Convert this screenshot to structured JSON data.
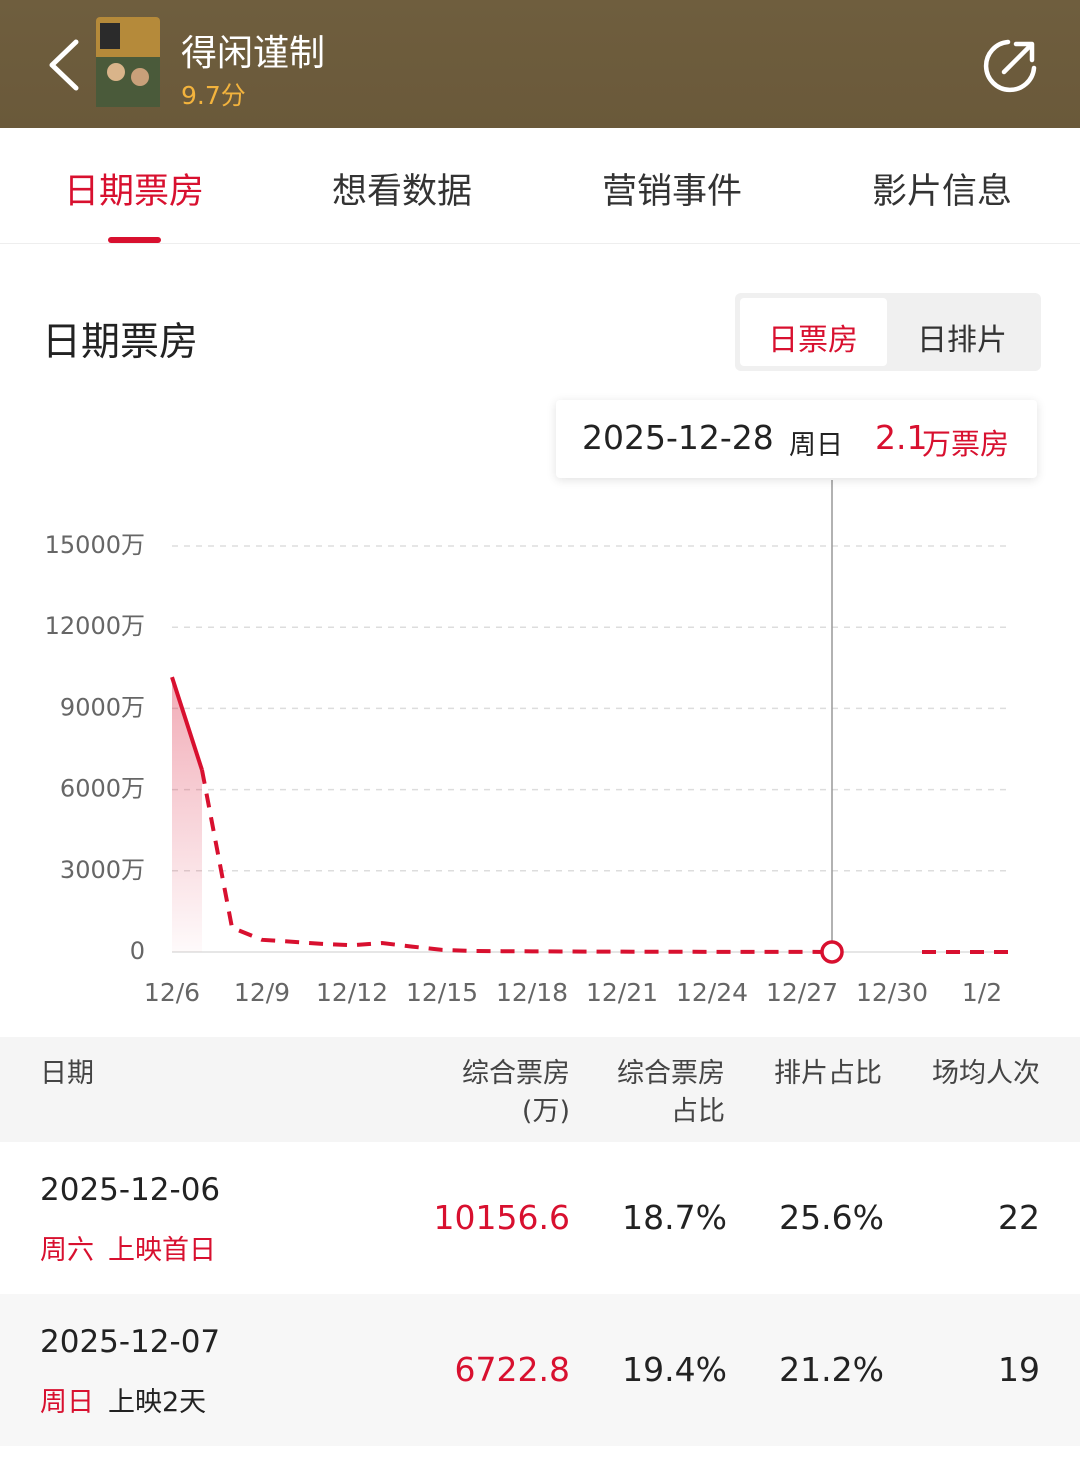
{
  "header": {
    "title": "得闲谨制",
    "rating": "9.7分"
  },
  "tabs": [
    "日期票房",
    "想看数据",
    "营销事件",
    "影片信息"
  ],
  "section_title": "日期票房",
  "toggle": [
    "日票房",
    "日排片"
  ],
  "tooltip": {
    "date": "2025-12-28",
    "weekday": "周日",
    "value": "2.1",
    "unit": "万票房"
  },
  "chart_data": {
    "type": "line",
    "categories": [
      "12/6",
      null,
      null,
      "12/9",
      null,
      null,
      "12/12",
      null,
      null,
      "12/15",
      null,
      null,
      "12/18",
      null,
      null,
      "12/21",
      null,
      null,
      "12/24",
      null,
      null,
      "12/27",
      null,
      null,
      "12/30",
      null,
      null,
      "1/2",
      null
    ],
    "series": [
      {
        "color": "#d8102f",
        "values": [
          10156.6,
          6722.8,
          900,
          450,
          380,
          300,
          250,
          330,
          200,
          80,
          40,
          30,
          25,
          20,
          15,
          12,
          10,
          8,
          6,
          5,
          4,
          3,
          2.1,
          null,
          null,
          2,
          2,
          2,
          2
        ]
      }
    ],
    "ylim": [
      0,
      15000
    ],
    "yticks": [
      0,
      {
        "value": 3000,
        "label": "3000万"
      },
      {
        "value": 6000,
        "label": "6000万"
      },
      {
        "value": 9000,
        "label": "9000万"
      },
      {
        "value": 12000,
        "label": "12000万"
      },
      {
        "value": 15000,
        "label": "15000万"
      }
    ],
    "grid": true
  },
  "table": {
    "columns": [
      [
        "日期"
      ],
      [
        "综合票房",
        "(万)"
      ],
      [
        "综合票房",
        "占比"
      ],
      [
        "排片占比"
      ],
      [
        "场均人次"
      ]
    ],
    "rows": [
      [
        "2025-12-06",
        "周六",
        "上映首日",
        "10156.6",
        "18.7%",
        "25.6%",
        "22"
      ],
      [
        "2025-12-07",
        "周日",
        "上映2天",
        "6722.8",
        "19.4%",
        "21.2%",
        "19"
      ]
    ]
  }
}
